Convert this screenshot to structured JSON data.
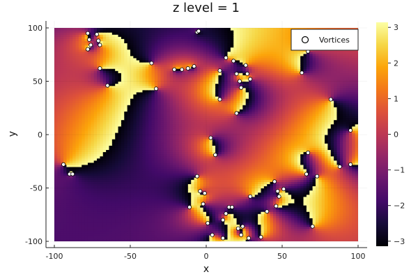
{
  "chart_data": {
    "type": "heatmap",
    "title": "z level = 1",
    "xlabel": "x",
    "ylabel": "y",
    "xlim": [
      -105,
      105
    ],
    "ylim": [
      -105,
      105
    ],
    "x_ticks": [
      -100,
      -50,
      0,
      50,
      100
    ],
    "y_ticks": [
      -100,
      -50,
      0,
      50,
      100
    ],
    "colorbar": {
      "colormap": "inferno",
      "range": [
        -3.14159,
        3.14159
      ],
      "ticks": [
        -3,
        -2,
        -1,
        0,
        1,
        2,
        3
      ]
    },
    "legend": {
      "position": "top-right",
      "entries": [
        "Vortices"
      ]
    },
    "grid": true,
    "vortices": [
      [
        -78,
        95
      ],
      [
        -77,
        89
      ],
      [
        -76,
        84
      ],
      [
        -78,
        80
      ],
      [
        -72,
        94
      ],
      [
        -71,
        88
      ],
      [
        -70,
        84
      ],
      [
        -70,
        62
      ],
      [
        -65,
        46
      ],
      [
        -36,
        67
      ],
      [
        -33,
        43
      ],
      [
        -21,
        61
      ],
      [
        -16,
        61
      ],
      [
        -12,
        62
      ],
      [
        -8,
        64
      ],
      [
        -6,
        96
      ],
      [
        -5,
        97
      ],
      [
        -94,
        -28
      ],
      [
        -90,
        -37
      ],
      [
        -88,
        -37
      ],
      [
        -11,
        -68
      ],
      [
        -6,
        -39
      ],
      [
        -4,
        -53
      ],
      [
        -1,
        -55
      ],
      [
        -2,
        -65
      ],
      [
        1,
        -83
      ],
      [
        3,
        -3
      ],
      [
        6,
        -19
      ],
      [
        9,
        60
      ],
      [
        9,
        33
      ],
      [
        13,
        72
      ],
      [
        18,
        69
      ],
      [
        20,
        57
      ],
      [
        22,
        50
      ],
      [
        23,
        44
      ],
      [
        20,
        20
      ],
      [
        26,
        65
      ],
      [
        27,
        57
      ],
      [
        29,
        52
      ],
      [
        11,
        -80
      ],
      [
        13,
        -74
      ],
      [
        15,
        -68
      ],
      [
        17,
        -68
      ],
      [
        21,
        -88
      ],
      [
        23,
        -94
      ],
      [
        24,
        -86
      ],
      [
        28,
        -97
      ],
      [
        29,
        -58
      ],
      [
        36,
        -96
      ],
      [
        40,
        -72
      ],
      [
        45,
        -44
      ],
      [
        47,
        -53
      ],
      [
        48,
        -58
      ],
      [
        46,
        -67
      ],
      [
        51,
        -51
      ],
      [
        63,
        58
      ],
      [
        67,
        78
      ],
      [
        66,
        -37
      ],
      [
        67,
        -17
      ],
      [
        73,
        -39
      ],
      [
        82,
        33
      ],
      [
        88,
        -30
      ],
      [
        95,
        4
      ],
      [
        95,
        -28
      ],
      [
        70,
        -86
      ],
      [
        4,
        -94
      ],
      [
        11,
        -97
      ]
    ]
  }
}
